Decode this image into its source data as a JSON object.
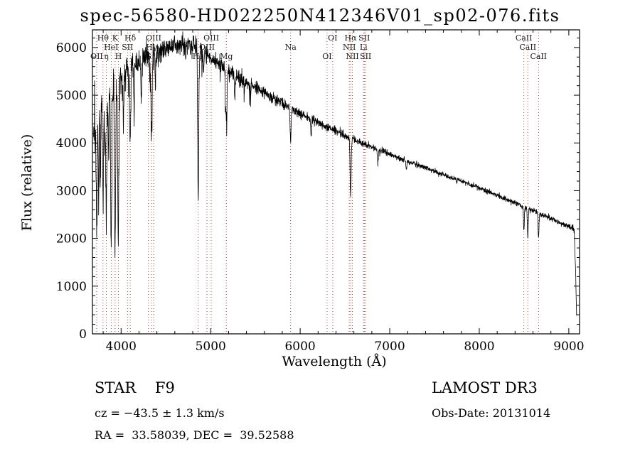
{
  "chart_data": {
    "type": "line",
    "title": "spec-56580-HD022250N412346V01_sp02-076.fits",
    "xlabel": "Wavelength (Å)",
    "ylabel": "Flux (relative)",
    "xlim": [
      3680,
      9120
    ],
    "ylim": [
      0,
      6370
    ],
    "xticks": [
      4000,
      5000,
      6000,
      7000,
      8000,
      9000
    ],
    "yticks": [
      0,
      1000,
      2000,
      3000,
      4000,
      5000,
      6000
    ],
    "line_color": "#000000",
    "marker_color": "#a03028",
    "legend": "none",
    "grid": "off",
    "spectral_lines": [
      {
        "label": "Hθ",
        "wavelength": 3798,
        "row": 1
      },
      {
        "label": "K",
        "wavelength": 3933,
        "row": 1
      },
      {
        "label": "Hδ",
        "wavelength": 4102,
        "row": 1
      },
      {
        "label": "OIII",
        "wavelength": 4363,
        "row": 1
      },
      {
        "label": "OIII",
        "wavelength": 5007,
        "row": 1
      },
      {
        "label": "OI",
        "wavelength": 6363,
        "row": 1
      },
      {
        "label": "Hα",
        "wavelength": 6563,
        "row": 1
      },
      {
        "label": "SII",
        "wavelength": 6716,
        "row": 1
      },
      {
        "label": "CaII",
        "wavelength": 8498,
        "row": 1
      },
      {
        "label": "HeI",
        "wavelength": 3889,
        "row": 2
      },
      {
        "label": "SII",
        "wavelength": 4072,
        "row": 2
      },
      {
        "label": "Hγ",
        "wavelength": 4340,
        "row": 2
      },
      {
        "label": "OIII",
        "wavelength": 4959,
        "row": 2
      },
      {
        "label": "Na",
        "wavelength": 5893,
        "row": 2
      },
      {
        "label": "NII",
        "wavelength": 6548,
        "row": 2
      },
      {
        "label": "Li",
        "wavelength": 6708,
        "row": 2
      },
      {
        "label": "CaII",
        "wavelength": 8542,
        "row": 2
      },
      {
        "label": "OII",
        "wavelength": 3727,
        "row": 3
      },
      {
        "label": "η",
        "wavelength": 3835,
        "row": 3
      },
      {
        "label": "H",
        "wavelength": 3970,
        "row": 3
      },
      {
        "label": "G",
        "wavelength": 4304,
        "row": 3
      },
      {
        "label": "Hβ",
        "wavelength": 4861,
        "row": 3
      },
      {
        "label": "Mg",
        "wavelength": 5175,
        "row": 3
      },
      {
        "label": "OI",
        "wavelength": 6300,
        "row": 3
      },
      {
        "label": "NII",
        "wavelength": 6583,
        "row": 3
      },
      {
        "label": "SII",
        "wavelength": 6731,
        "row": 3
      },
      {
        "label": "CaII",
        "wavelength": 8662,
        "row": 3
      }
    ],
    "continuum": [
      [
        3690,
        4200
      ],
      [
        3720,
        4350
      ],
      [
        3760,
        4600
      ],
      [
        3800,
        4800
      ],
      [
        3840,
        4950
      ],
      [
        3880,
        5050
      ],
      [
        3920,
        5150
      ],
      [
        3960,
        5250
      ],
      [
        4000,
        5400
      ],
      [
        4060,
        5500
      ],
      [
        4120,
        5600
      ],
      [
        4200,
        5720
      ],
      [
        4300,
        5820
      ],
      [
        4400,
        5900
      ],
      [
        4500,
        5980
      ],
      [
        4600,
        6040
      ],
      [
        4700,
        6060
      ],
      [
        4800,
        6030
      ],
      [
        4900,
        5930
      ],
      [
        5000,
        5780
      ],
      [
        5100,
        5650
      ],
      [
        5200,
        5540
      ],
      [
        5300,
        5400
      ],
      [
        5400,
        5270
      ],
      [
        5500,
        5160
      ],
      [
        5600,
        5050
      ],
      [
        5700,
        4940
      ],
      [
        5800,
        4830
      ],
      [
        5900,
        4720
      ],
      [
        6000,
        4620
      ],
      [
        6100,
        4520
      ],
      [
        6200,
        4430
      ],
      [
        6300,
        4340
      ],
      [
        6400,
        4250
      ],
      [
        6500,
        4160
      ],
      [
        6600,
        4070
      ],
      [
        6700,
        3990
      ],
      [
        6800,
        3910
      ],
      [
        6900,
        3830
      ],
      [
        7000,
        3760
      ],
      [
        7100,
        3690
      ],
      [
        7200,
        3620
      ],
      [
        7300,
        3550
      ],
      [
        7400,
        3480
      ],
      [
        7500,
        3410
      ],
      [
        7600,
        3340
      ],
      [
        7700,
        3270
      ],
      [
        7800,
        3200
      ],
      [
        7900,
        3130
      ],
      [
        8000,
        3060
      ],
      [
        8100,
        2980
      ],
      [
        8200,
        2900
      ],
      [
        8300,
        2820
      ],
      [
        8400,
        2740
      ],
      [
        8500,
        2660
      ],
      [
        8600,
        2580
      ],
      [
        8700,
        2500
      ],
      [
        8800,
        2420
      ],
      [
        8900,
        2330
      ],
      [
        9000,
        2250
      ],
      [
        9040,
        2230
      ],
      [
        9060,
        2150
      ],
      [
        9075,
        1400
      ],
      [
        9085,
        500
      ],
      [
        9090,
        300
      ]
    ],
    "absorption_dips": [
      [
        3727,
        2400,
        5
      ],
      [
        3750,
        1700,
        4
      ],
      [
        3770,
        1900,
        4
      ],
      [
        3798,
        2200,
        5
      ],
      [
        3819,
        1200,
        4
      ],
      [
        3835,
        2700,
        5
      ],
      [
        3860,
        1000,
        4
      ],
      [
        3889,
        3500,
        6
      ],
      [
        3933,
        3600,
        6
      ],
      [
        3968,
        3400,
        6
      ],
      [
        4026,
        1100,
        4
      ],
      [
        4101,
        1700,
        6
      ],
      [
        4144,
        700,
        4
      ],
      [
        4226,
        900,
        4
      ],
      [
        4340,
        1500,
        6
      ],
      [
        4383,
        800,
        4
      ],
      [
        4861,
        3100,
        6
      ],
      [
        4920,
        500,
        4
      ],
      [
        5175,
        1000,
        7
      ],
      [
        5270,
        500,
        5
      ],
      [
        5893,
        650,
        6
      ],
      [
        6122,
        300,
        5
      ],
      [
        6563,
        1200,
        6
      ],
      [
        6867,
        280,
        5
      ],
      [
        7186,
        200,
        5
      ],
      [
        8498,
        480,
        5
      ],
      [
        8542,
        600,
        5
      ],
      [
        8662,
        520,
        5
      ]
    ],
    "noise_sigma": [
      [
        3692,
        380
      ],
      [
        3800,
        300
      ],
      [
        3900,
        260
      ],
      [
        4000,
        180
      ],
      [
        4200,
        140
      ],
      [
        4500,
        110
      ],
      [
        5000,
        85
      ],
      [
        5500,
        65
      ],
      [
        6000,
        50
      ],
      [
        6500,
        40
      ],
      [
        7000,
        32
      ],
      [
        7500,
        28
      ],
      [
        8000,
        26
      ],
      [
        8600,
        28
      ],
      [
        9000,
        30
      ],
      [
        9090,
        40
      ]
    ]
  },
  "annotations": {
    "class_label": "STAR    F9",
    "survey": "LAMOST DR3",
    "cz": "cz = −43.5 ± 1.3 km/s",
    "obs_date": "Obs-Date: 20131014",
    "ra_dec": "RA =  33.58039, DEC =  39.52588"
  }
}
